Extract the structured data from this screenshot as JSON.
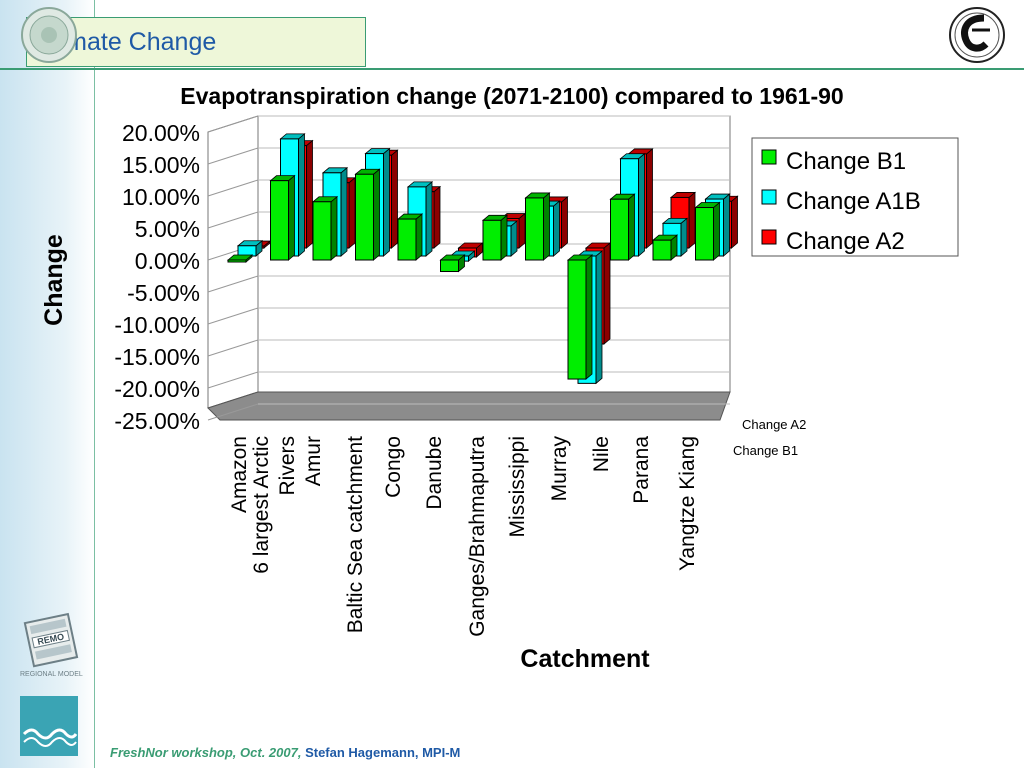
{
  "slide": {
    "title": "Climate Change",
    "footer_event": "FreshNor workshop, Oct. 2007,",
    "footer_author": "Stefan Hagemann, MPI-M"
  },
  "logos": {
    "remo_text": "REMO",
    "remo_caption": "REGIONAL MODEL"
  },
  "chart_data": {
    "type": "bar",
    "title": "Evapotranspiration change (2071-2100) compared to 1961-90",
    "xlabel": "Catchment",
    "ylabel": "Change",
    "ylim": [
      -0.25,
      0.2
    ],
    "yticks": [
      "20.00%",
      "15.00%",
      "10.00%",
      "5.00%",
      "0.00%",
      "-5.00%",
      "-10.00%",
      "-15.00%",
      "-20.00%",
      "-25.00%"
    ],
    "categories": [
      "Amazon",
      "6 largest Arctic Rivers",
      "Amur",
      "Baltic Sea catchment",
      "Congo",
      "Danube",
      "Ganges/Brahmaputra",
      "Mississippi",
      "Murray",
      "Nile",
      "Parana",
      "Yangtze Kiang"
    ],
    "series": [
      {
        "name": "Change B1",
        "color": "#00ee00",
        "values": [
          0.0,
          0.124,
          0.091,
          0.134,
          0.064,
          -0.018,
          0.062,
          0.097,
          -0.186,
          0.095,
          0.031,
          0.082
        ]
      },
      {
        "name": "Change A1B",
        "color": "#00ffff",
        "values": [
          0.016,
          0.183,
          0.13,
          0.16,
          0.108,
          -0.008,
          0.047,
          0.078,
          -0.199,
          0.152,
          0.051,
          0.089
        ]
      },
      {
        "name": "Change A2",
        "color": "#ff0000",
        "values": [
          0.003,
          0.16,
          0.102,
          0.145,
          0.088,
          -0.014,
          0.046,
          0.072,
          -0.15,
          0.147,
          0.079,
          0.073
        ]
      }
    ],
    "depth_axis_labels": [
      "Change A2",
      "Change B1"
    ],
    "legend_position": "right",
    "grid": true
  }
}
